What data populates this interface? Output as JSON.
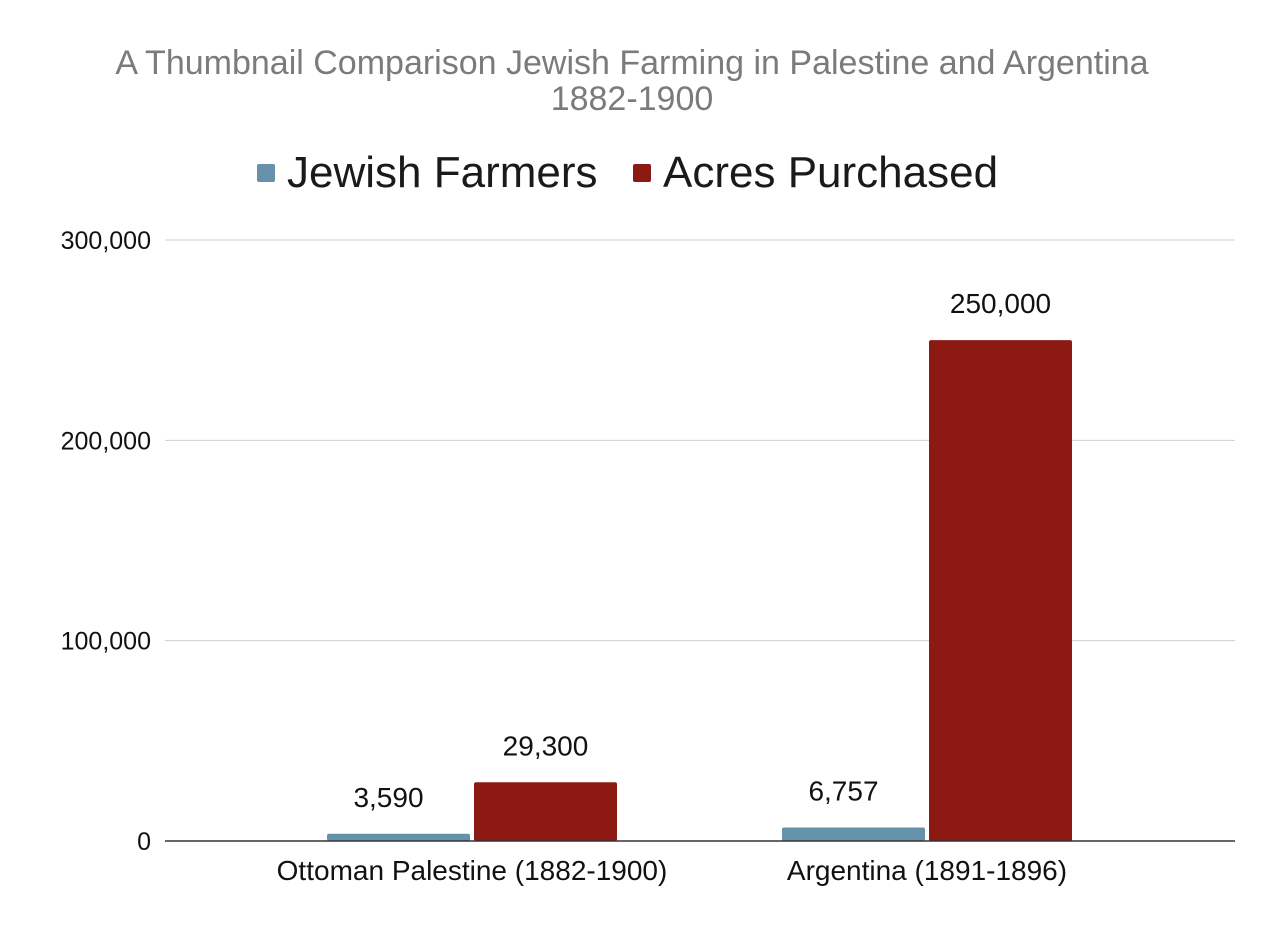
{
  "chart_data": {
    "type": "bar",
    "title": "A Thumbnail Comparison Jewish Farming in Palestine and Argentina",
    "subtitle": "1882-1900",
    "categories": [
      "Ottoman Palestine (1882-1900)",
      "Argentina (1891-1896)"
    ],
    "series": [
      {
        "name": "Jewish Farmers",
        "values": [
          3590,
          6757
        ],
        "labels": [
          "3,590",
          "6,757"
        ],
        "color": "#6592aa"
      },
      {
        "name": "Acres Purchased",
        "values": [
          29300,
          250000
        ],
        "labels": [
          "29,300",
          "250,000"
        ],
        "color": "#8c1a12"
      }
    ],
    "ylim": [
      0,
      300000
    ],
    "yticks": [
      0,
      100000,
      200000,
      300000
    ],
    "ytick_labels": [
      "0",
      "100,000",
      "200,000",
      "300,000"
    ],
    "xlabel": "",
    "ylabel": "",
    "legend": "top",
    "grid": true
  }
}
